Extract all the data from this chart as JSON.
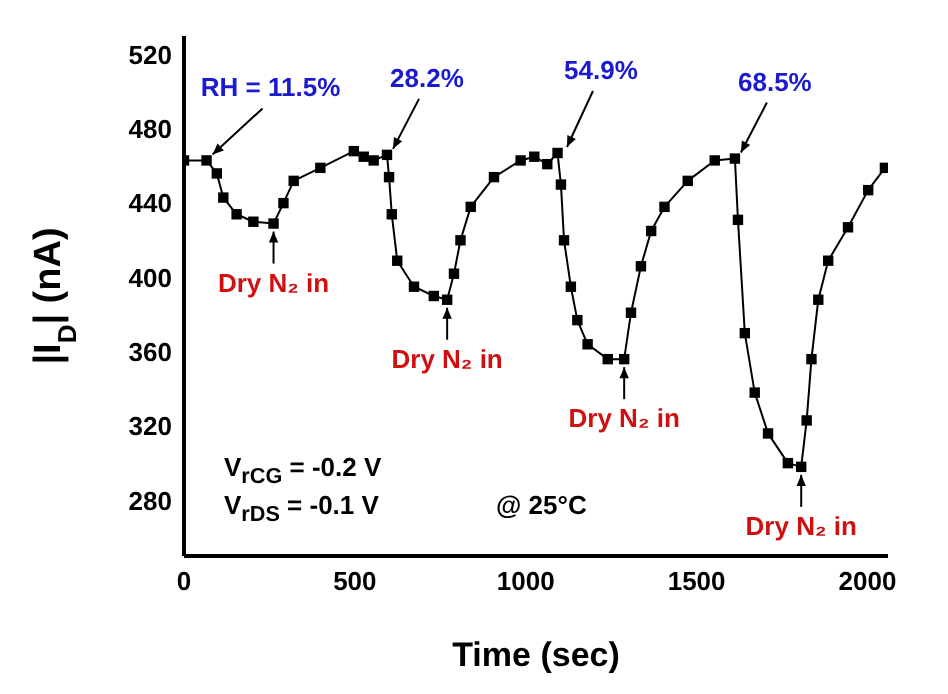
{
  "chart_data": {
    "type": "line",
    "xlabel": "Time (sec)",
    "ylabel": "|I$_{D}$| (nA)",
    "xlim": [
      0,
      2060
    ],
    "xticks": [
      0,
      500,
      1000,
      1500,
      2000
    ],
    "ylim": [
      250,
      530
    ],
    "yticks": [
      280,
      320,
      360,
      400,
      440,
      480,
      520
    ],
    "grid": false,
    "legend": false,
    "marker": "square",
    "line_style": "solid",
    "series": [
      {
        "color": "#000000",
        "x": [
          0,
          66,
          96,
          115,
          154,
          203,
          262,
          291,
          321,
          399,
          497,
          526,
          555,
          594,
          600,
          608,
          624,
          673,
          731,
          770,
          790,
          809,
          839,
          907,
          985,
          1025,
          1063,
          1093,
          1103,
          1112,
          1132,
          1151,
          1181,
          1240,
          1288,
          1308,
          1337,
          1367,
          1406,
          1474,
          1553,
          1612,
          1621,
          1641,
          1670,
          1709,
          1767,
          1806,
          1822,
          1836,
          1856,
          1885,
          1943,
          2002,
          2051
        ],
        "values": [
          463,
          463,
          456,
          443,
          434,
          430,
          429,
          440,
          452,
          459,
          468,
          465,
          463,
          466,
          454,
          434,
          409,
          395,
          390,
          388,
          402,
          420,
          438,
          454,
          463,
          465,
          461,
          467,
          450,
          420,
          395,
          377,
          364,
          356,
          356,
          381,
          406,
          425,
          438,
          452,
          463,
          464,
          431,
          370,
          338,
          316,
          300,
          298,
          323,
          356,
          388,
          409,
          427,
          447,
          459
        ]
      }
    ],
    "annotations": [
      {
        "text": "RH = 11.5%",
        "x": 66,
        "y": 463
      },
      {
        "text": "28.2%",
        "x": 594,
        "y": 466
      },
      {
        "text": "54.9%",
        "x": 1103,
        "y": 467
      },
      {
        "text": "68.5%",
        "x": 1612,
        "y": 464
      },
      {
        "text": "Dry N₂ in",
        "x": 262,
        "y": 429
      },
      {
        "text": "Dry N₂ in",
        "x": 770,
        "y": 388
      },
      {
        "text": "Dry N₂ in",
        "x": 1288,
        "y": 356
      },
      {
        "text": "Dry N₂ in",
        "x": 1806,
        "y": 298
      },
      "V$_{rCG}$ = -0.2 V",
      "V$_{rDS}$ = -0.1 V",
      "@ 25°C"
    ]
  }
}
